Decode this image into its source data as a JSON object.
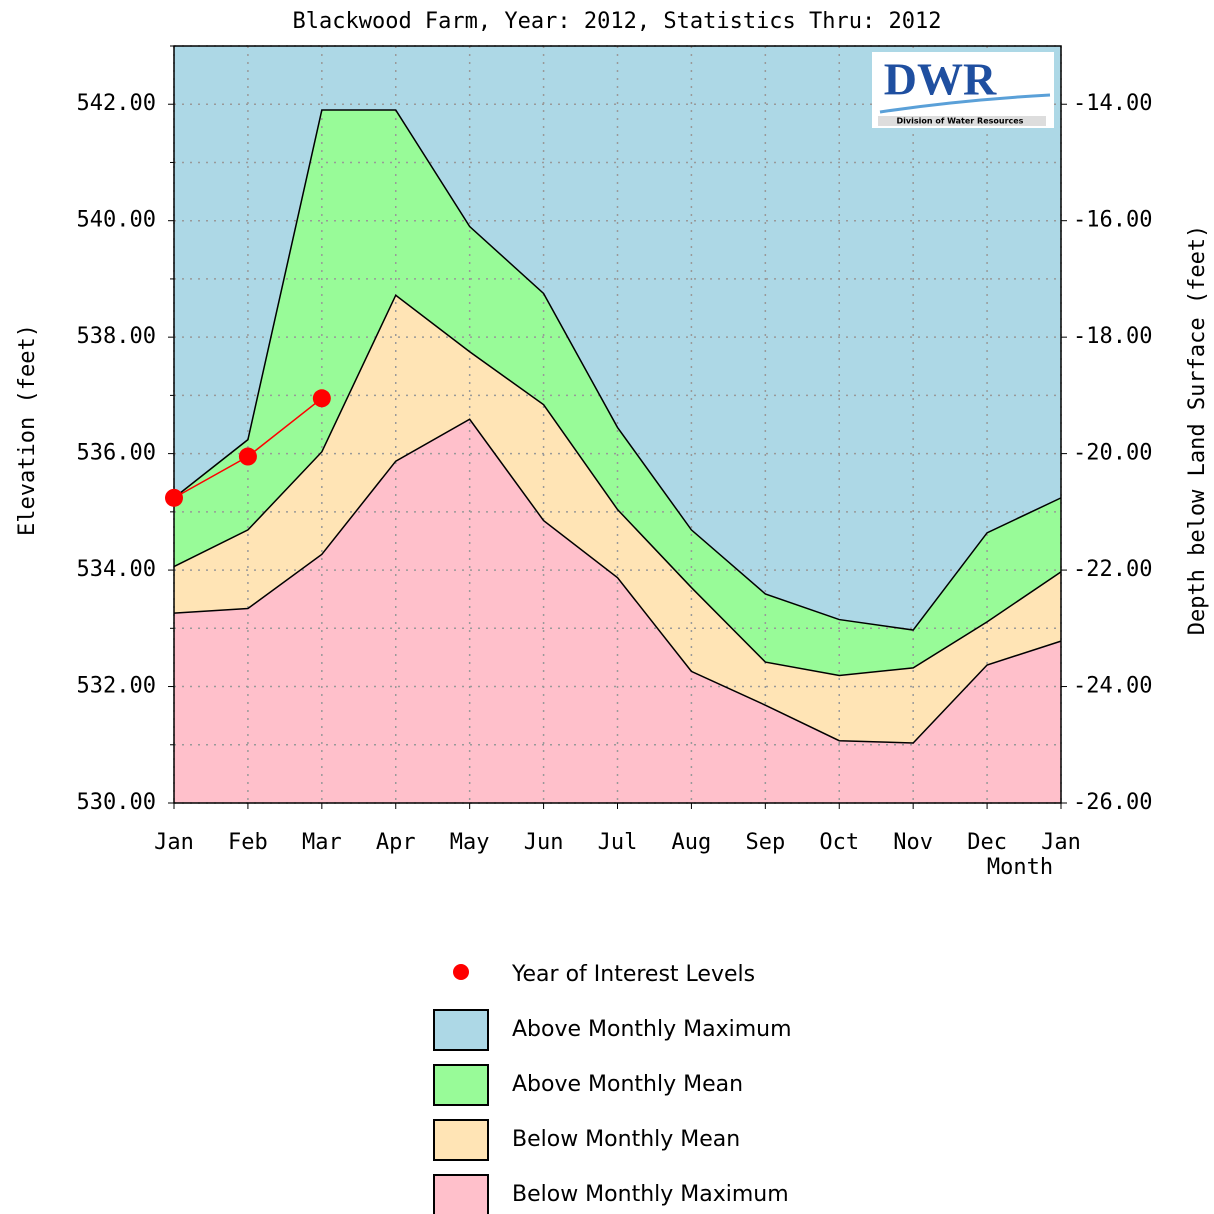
{
  "chart_data": {
    "type": "area",
    "title": "Blackwood Farm, Year: 2012, Statistics Thru: 2012",
    "x_label": "Month",
    "y_label": "Elevation (feet)",
    "y2_label": "Depth below Land Surface (feet)",
    "logo": {
      "text": "DWR",
      "subtext": "Division of Water Resources"
    },
    "categories": [
      "Jan",
      "Feb",
      "Mar",
      "Apr",
      "May",
      "Jun",
      "Jul",
      "Aug",
      "Sep",
      "Oct",
      "Nov",
      "Dec",
      "Jan"
    ],
    "ylim": [
      530,
      543
    ],
    "yticks": [
      {
        "value": 530,
        "label": "530.00"
      },
      {
        "value": 532,
        "label": "532.00"
      },
      {
        "value": 534,
        "label": "534.00"
      },
      {
        "value": 536,
        "label": "536.00"
      },
      {
        "value": 538,
        "label": "538.00"
      },
      {
        "value": 540,
        "label": "540.00"
      },
      {
        "value": 542,
        "label": "542.00"
      }
    ],
    "y_minor_ticks": [
      531,
      533,
      535,
      537,
      539,
      541,
      543
    ],
    "y2lim": [
      -26,
      -13
    ],
    "y2ticks": [
      {
        "value": -26,
        "label": "-26.00"
      },
      {
        "value": -24,
        "label": "-24.00"
      },
      {
        "value": -22,
        "label": "-22.00"
      },
      {
        "value": -20,
        "label": "-20.00"
      },
      {
        "value": -18,
        "label": "-18.00"
      },
      {
        "value": -16,
        "label": "-16.00"
      },
      {
        "value": -14,
        "label": "-14.00"
      }
    ],
    "grid": true,
    "series": [
      {
        "name": "Year of Interest Levels",
        "color": "#ff0000",
        "kind": "points",
        "values": [
          535.24,
          535.95,
          536.95,
          null,
          null,
          null,
          null,
          null,
          null,
          null,
          null,
          null,
          null
        ]
      },
      {
        "name": "Above Monthly Maximum",
        "color": "#add8e6",
        "kind": "band"
      },
      {
        "name": "Above Monthly Mean",
        "color": "#98fb98",
        "kind": "band",
        "values": [
          535.24,
          536.24,
          541.9,
          541.9,
          539.9,
          538.75,
          536.45,
          534.69,
          533.59,
          533.15,
          532.97,
          534.64,
          535.24
        ]
      },
      {
        "name": "Below Monthly Mean",
        "color": "#ffe4b5",
        "kind": "band",
        "values": [
          534.06,
          534.69,
          536.03,
          538.72,
          537.75,
          536.84,
          535.04,
          533.7,
          532.42,
          532.19,
          532.32,
          533.11,
          533.97
        ]
      },
      {
        "name": "Below Monthly Maximum",
        "color": "#ffc0cb",
        "kind": "band",
        "values": [
          533.26,
          533.34,
          534.27,
          535.87,
          536.59,
          534.85,
          533.87,
          532.26,
          531.68,
          531.07,
          531.03,
          532.37,
          532.78
        ]
      }
    ]
  }
}
